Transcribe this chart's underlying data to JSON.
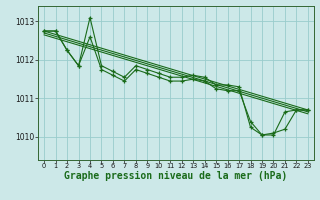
{
  "bg_color": "#cce8e8",
  "grid_color": "#99cccc",
  "line_color": "#1a6b1a",
  "xlabel": "Graphe pression niveau de la mer (hPa)",
  "xlabel_fontsize": 7,
  "ylabel_ticks": [
    1010,
    1011,
    1012,
    1013
  ],
  "xlim": [
    -0.5,
    23.5
  ],
  "ylim": [
    1009.4,
    1013.4
  ],
  "xticks": [
    0,
    1,
    2,
    3,
    4,
    5,
    6,
    7,
    8,
    9,
    10,
    11,
    12,
    13,
    14,
    15,
    16,
    17,
    18,
    19,
    20,
    21,
    22,
    23
  ],
  "series1": [
    1012.75,
    1012.75,
    1012.25,
    1011.85,
    1013.1,
    1011.85,
    1011.7,
    1011.55,
    1011.85,
    1011.75,
    1011.65,
    1011.55,
    1011.55,
    1011.6,
    1011.55,
    1011.35,
    1011.35,
    1011.3,
    1010.25,
    1010.05,
    1010.05,
    1010.65,
    1010.7,
    1010.7
  ],
  "series2": [
    1012.75,
    1012.75,
    1012.25,
    1011.85,
    1012.6,
    1011.75,
    1011.6,
    1011.45,
    1011.75,
    1011.65,
    1011.55,
    1011.45,
    1011.45,
    1011.5,
    1011.45,
    1011.25,
    1011.2,
    1011.2,
    1010.4,
    1010.05,
    1010.1,
    1010.2,
    1010.7,
    1010.7
  ],
  "trend1_x": [
    0,
    23
  ],
  "trend1_y": [
    1012.75,
    1010.7
  ],
  "trend2_x": [
    0,
    23
  ],
  "trend2_y": [
    1012.7,
    1010.65
  ],
  "trend3_x": [
    0,
    23
  ],
  "trend3_y": [
    1012.65,
    1010.6
  ]
}
